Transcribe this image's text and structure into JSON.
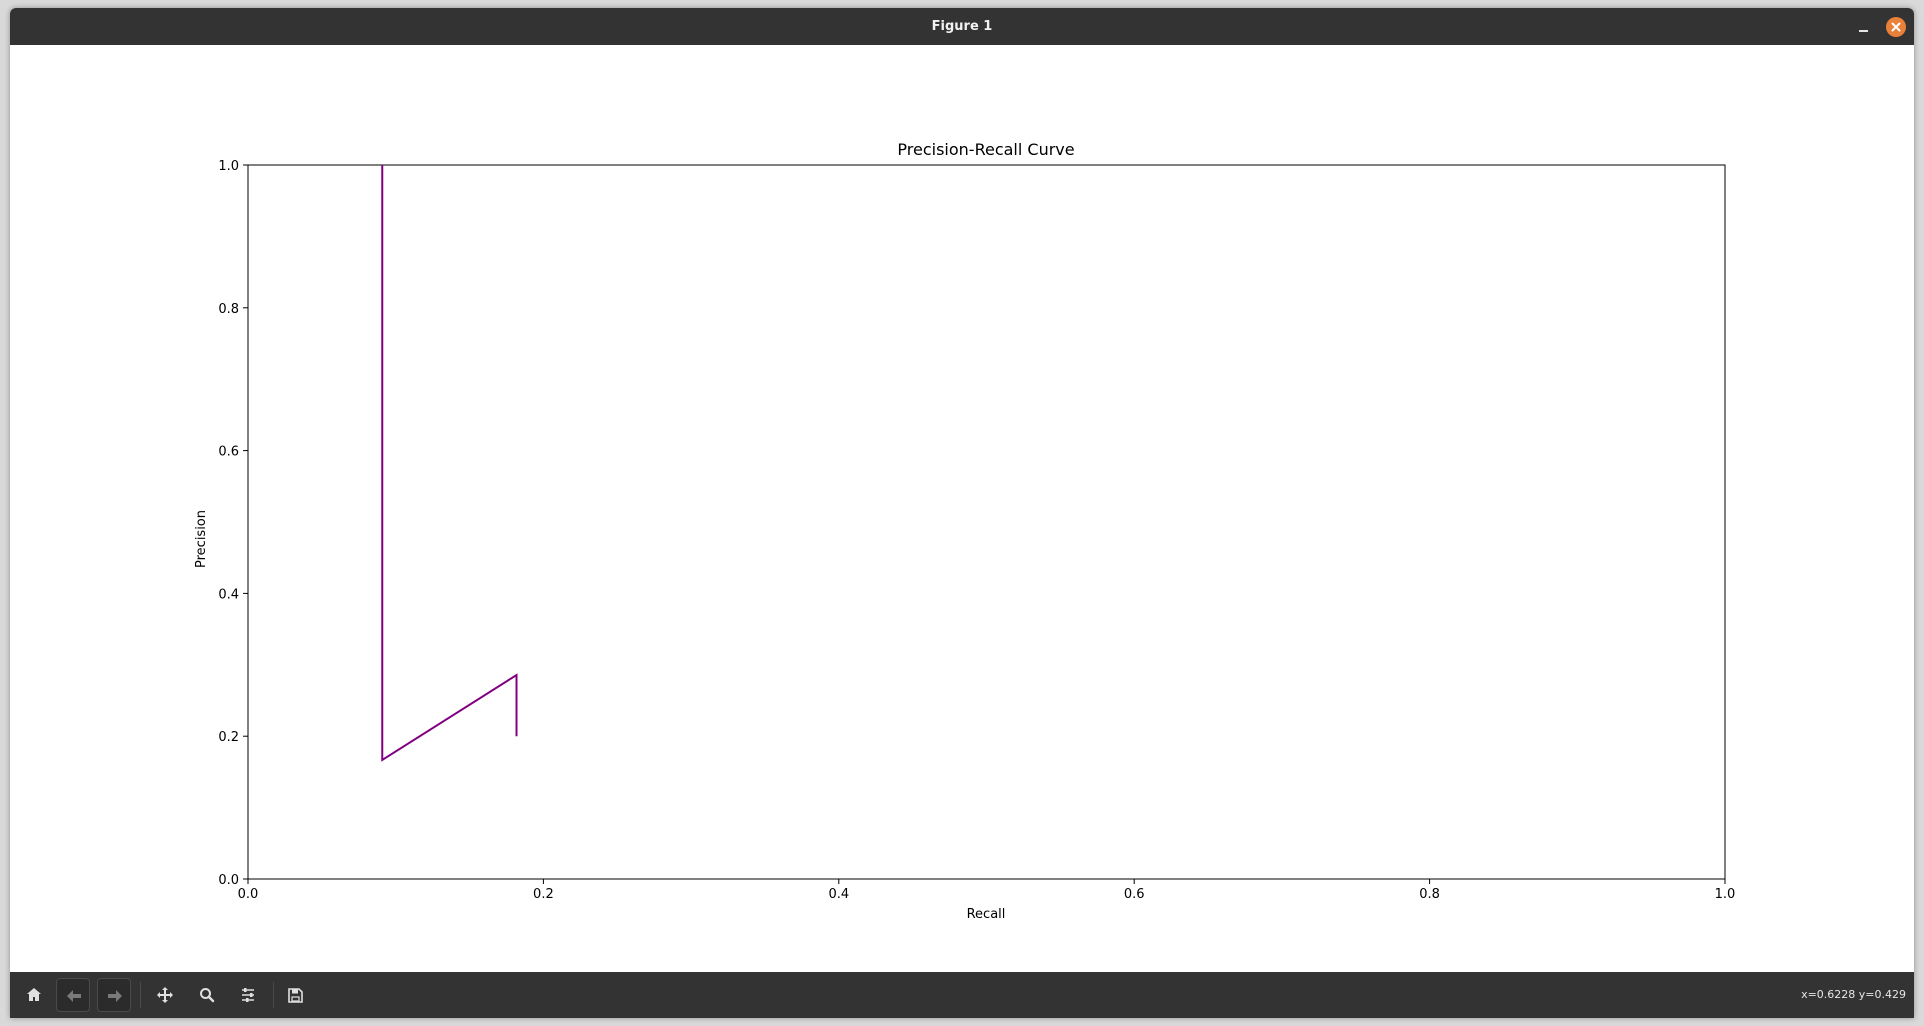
{
  "window": {
    "title": "Figure 1"
  },
  "toolbar": {
    "tools": [
      "home-icon",
      "back-arrow-icon",
      "forward-arrow-icon",
      "pan-icon",
      "zoom-icon",
      "configure-subplots-icon",
      "save-icon"
    ],
    "coords": "x=0.6228 y=0.429"
  },
  "chart_data": {
    "type": "line",
    "title": "Precision-Recall Curve",
    "xlabel": "Recall",
    "ylabel": "Precision",
    "xlim": [
      0.0,
      1.0
    ],
    "ylim": [
      0.0,
      1.0
    ],
    "xticks": [
      "0.0",
      "0.2",
      "0.4",
      "0.6",
      "0.8",
      "1.0"
    ],
    "yticks": [
      "0.0",
      "0.2",
      "0.4",
      "0.6",
      "0.8",
      "1.0"
    ],
    "grid": false,
    "series": [
      {
        "color": "#800080",
        "x": [
          0.0909,
          0.0909,
          0.1818,
          0.1818
        ],
        "y": [
          1.0,
          0.1667,
          0.2857,
          0.2
        ]
      }
    ]
  }
}
